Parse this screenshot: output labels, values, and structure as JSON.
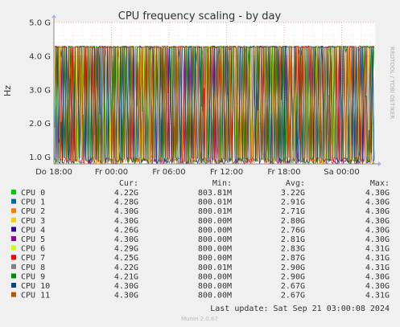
{
  "chart_data": {
    "type": "line",
    "title": "CPU frequency scaling - by day",
    "ylabel": "Hz",
    "side_label": "RRDTOOL / TOBI OETIKER",
    "ylim": [
      0.8,
      5.0
    ],
    "y_ticks": [
      {
        "value": 1.0,
        "label": "1.0 G"
      },
      {
        "value": 2.0,
        "label": "2.0 G"
      },
      {
        "value": 3.0,
        "label": "3.0 G"
      },
      {
        "value": 4.0,
        "label": "4.0 G"
      },
      {
        "value": 5.0,
        "label": "5.0 G"
      }
    ],
    "x_range": [
      "Thu 18:00",
      "Sat 04:30"
    ],
    "x_ticks": [
      "Do 18:00",
      "Fr 00:00",
      "Fr 06:00",
      "Fr 12:00",
      "Fr 18:00",
      "Sa 00:00"
    ],
    "legend_headers": {
      "cur": "Cur:",
      "min": "Min:",
      "avg": "Avg:",
      "max": "Max:"
    },
    "series": [
      {
        "name": "CPU 0",
        "color": "#00cc00",
        "cur": "4.22G",
        "min": "803.81M",
        "avg": "3.22G",
        "max": "4.30G"
      },
      {
        "name": "CPU 1",
        "color": "#0066b3",
        "cur": "4.28G",
        "min": "800.01M",
        "avg": "2.91G",
        "max": "4.30G"
      },
      {
        "name": "CPU 2",
        "color": "#ff8000",
        "cur": "4.30G",
        "min": "800.01M",
        "avg": "2.71G",
        "max": "4.30G"
      },
      {
        "name": "CPU 3",
        "color": "#ffcc00",
        "cur": "4.30G",
        "min": "800.00M",
        "avg": "2.80G",
        "max": "4.30G"
      },
      {
        "name": "CPU 4",
        "color": "#330099",
        "cur": "4.26G",
        "min": "800.00M",
        "avg": "2.76G",
        "max": "4.30G"
      },
      {
        "name": "CPU 5",
        "color": "#990099",
        "cur": "4.30G",
        "min": "800.00M",
        "avg": "2.81G",
        "max": "4.30G"
      },
      {
        "name": "CPU 6",
        "color": "#ccff00",
        "cur": "4.29G",
        "min": "800.00M",
        "avg": "2.83G",
        "max": "4.31G"
      },
      {
        "name": "CPU 7",
        "color": "#ff0000",
        "cur": "4.25G",
        "min": "800.00M",
        "avg": "2.87G",
        "max": "4.31G"
      },
      {
        "name": "CPU 8",
        "color": "#808080",
        "cur": "4.22G",
        "min": "800.01M",
        "avg": "2.90G",
        "max": "4.31G"
      },
      {
        "name": "CPU 9",
        "color": "#008f00",
        "cur": "4.21G",
        "min": "800.00M",
        "avg": "2.90G",
        "max": "4.30G"
      },
      {
        "name": "CPU 10",
        "color": "#00487d",
        "cur": "4.30G",
        "min": "800.00M",
        "avg": "2.67G",
        "max": "4.30G"
      },
      {
        "name": "CPU 11",
        "color": "#b35a00",
        "cur": "4.30G",
        "min": "800.00M",
        "avg": "2.67G",
        "max": "4.31G"
      }
    ],
    "last_update": "Last update: Sat Sep 21 03:00:08 2024",
    "footer": "Munin 2.0.67"
  }
}
